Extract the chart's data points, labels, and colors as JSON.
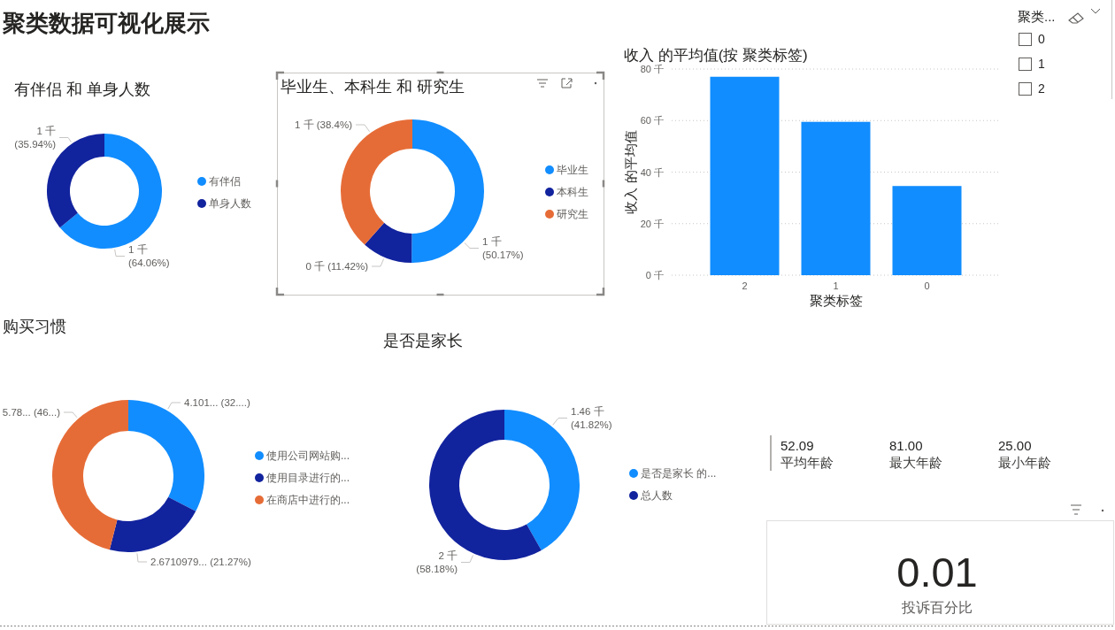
{
  "chart_data": [
    {
      "type": "other",
      "title": "聚类数据可视化展示"
    },
    {
      "type": "donut",
      "title": "有伴侣 和 单身人数",
      "categories": [
        "有伴侣",
        "单身人数"
      ],
      "values": [
        64.06,
        35.94
      ],
      "colors": [
        "#118dff",
        "#12239e"
      ],
      "value_labels": [
        "1 千 (64.06%)",
        "1 千 (35.94%)"
      ],
      "legend": "right"
    },
    {
      "type": "donut",
      "title": "毕业生、本科生 和 研究生",
      "categories": [
        "毕业生",
        "本科生",
        "研究生"
      ],
      "values": [
        50.17,
        11.42,
        38.4
      ],
      "colors": [
        "#118dff",
        "#12239e",
        "#e66c37"
      ],
      "value_labels": [
        "1 千 (50.17%)",
        "0 千 (11.42%)",
        "1 千 (38.4%)"
      ],
      "legend": "right"
    },
    {
      "type": "bar",
      "title": "收入 的平均值(按 聚类标签)",
      "xlabel": "聚类标签",
      "ylabel": "收入 的平均值",
      "categories": [
        "2",
        "1",
        "0"
      ],
      "values": [
        77,
        59.5,
        34.6
      ],
      "color": "#118dff",
      "ylim": [
        0,
        80
      ],
      "yticks": [
        {
          "value": 0,
          "label": "0 千"
        },
        {
          "value": 20,
          "label": "20 千"
        },
        {
          "value": 40,
          "label": "40 千"
        },
        {
          "value": 60,
          "label": "60 千"
        },
        {
          "value": 80,
          "label": "80 千"
        }
      ],
      "grid": "y"
    },
    {
      "type": "other",
      "title": "聚类...",
      "categories": [
        "0",
        "1",
        "2"
      ]
    },
    {
      "type": "donut",
      "title": "购买习惯",
      "categories": [
        "使用公司网站购...",
        "使用目录进行的...",
        "在商店中进行的..."
      ],
      "values": [
        4.101,
        2.6710979,
        5.78
      ],
      "colors": [
        "#118dff",
        "#12239e",
        "#e66c37"
      ],
      "value_labels": [
        "4.101... (32....)",
        "2.6710979... (21.27%)",
        "5.78... (46...)"
      ],
      "legend": "right"
    },
    {
      "type": "donut",
      "title": "是否是家长",
      "categories": [
        "是否是家长 的...",
        "总人数"
      ],
      "values": [
        41.82,
        58.18
      ],
      "colors": [
        "#118dff",
        "#12239e"
      ],
      "value_labels": [
        "1.46 千 (41.82%)",
        "2 千 (58.18%)"
      ],
      "legend": "right"
    },
    {
      "type": "other",
      "categories": [
        "平均年龄",
        "最大年龄",
        "最小年龄"
      ],
      "value_labels": [
        "52.09",
        "81.00",
        "25.00"
      ]
    },
    {
      "type": "other",
      "categories": [
        "投诉百分比"
      ],
      "value_labels": [
        "0.01"
      ]
    }
  ]
}
